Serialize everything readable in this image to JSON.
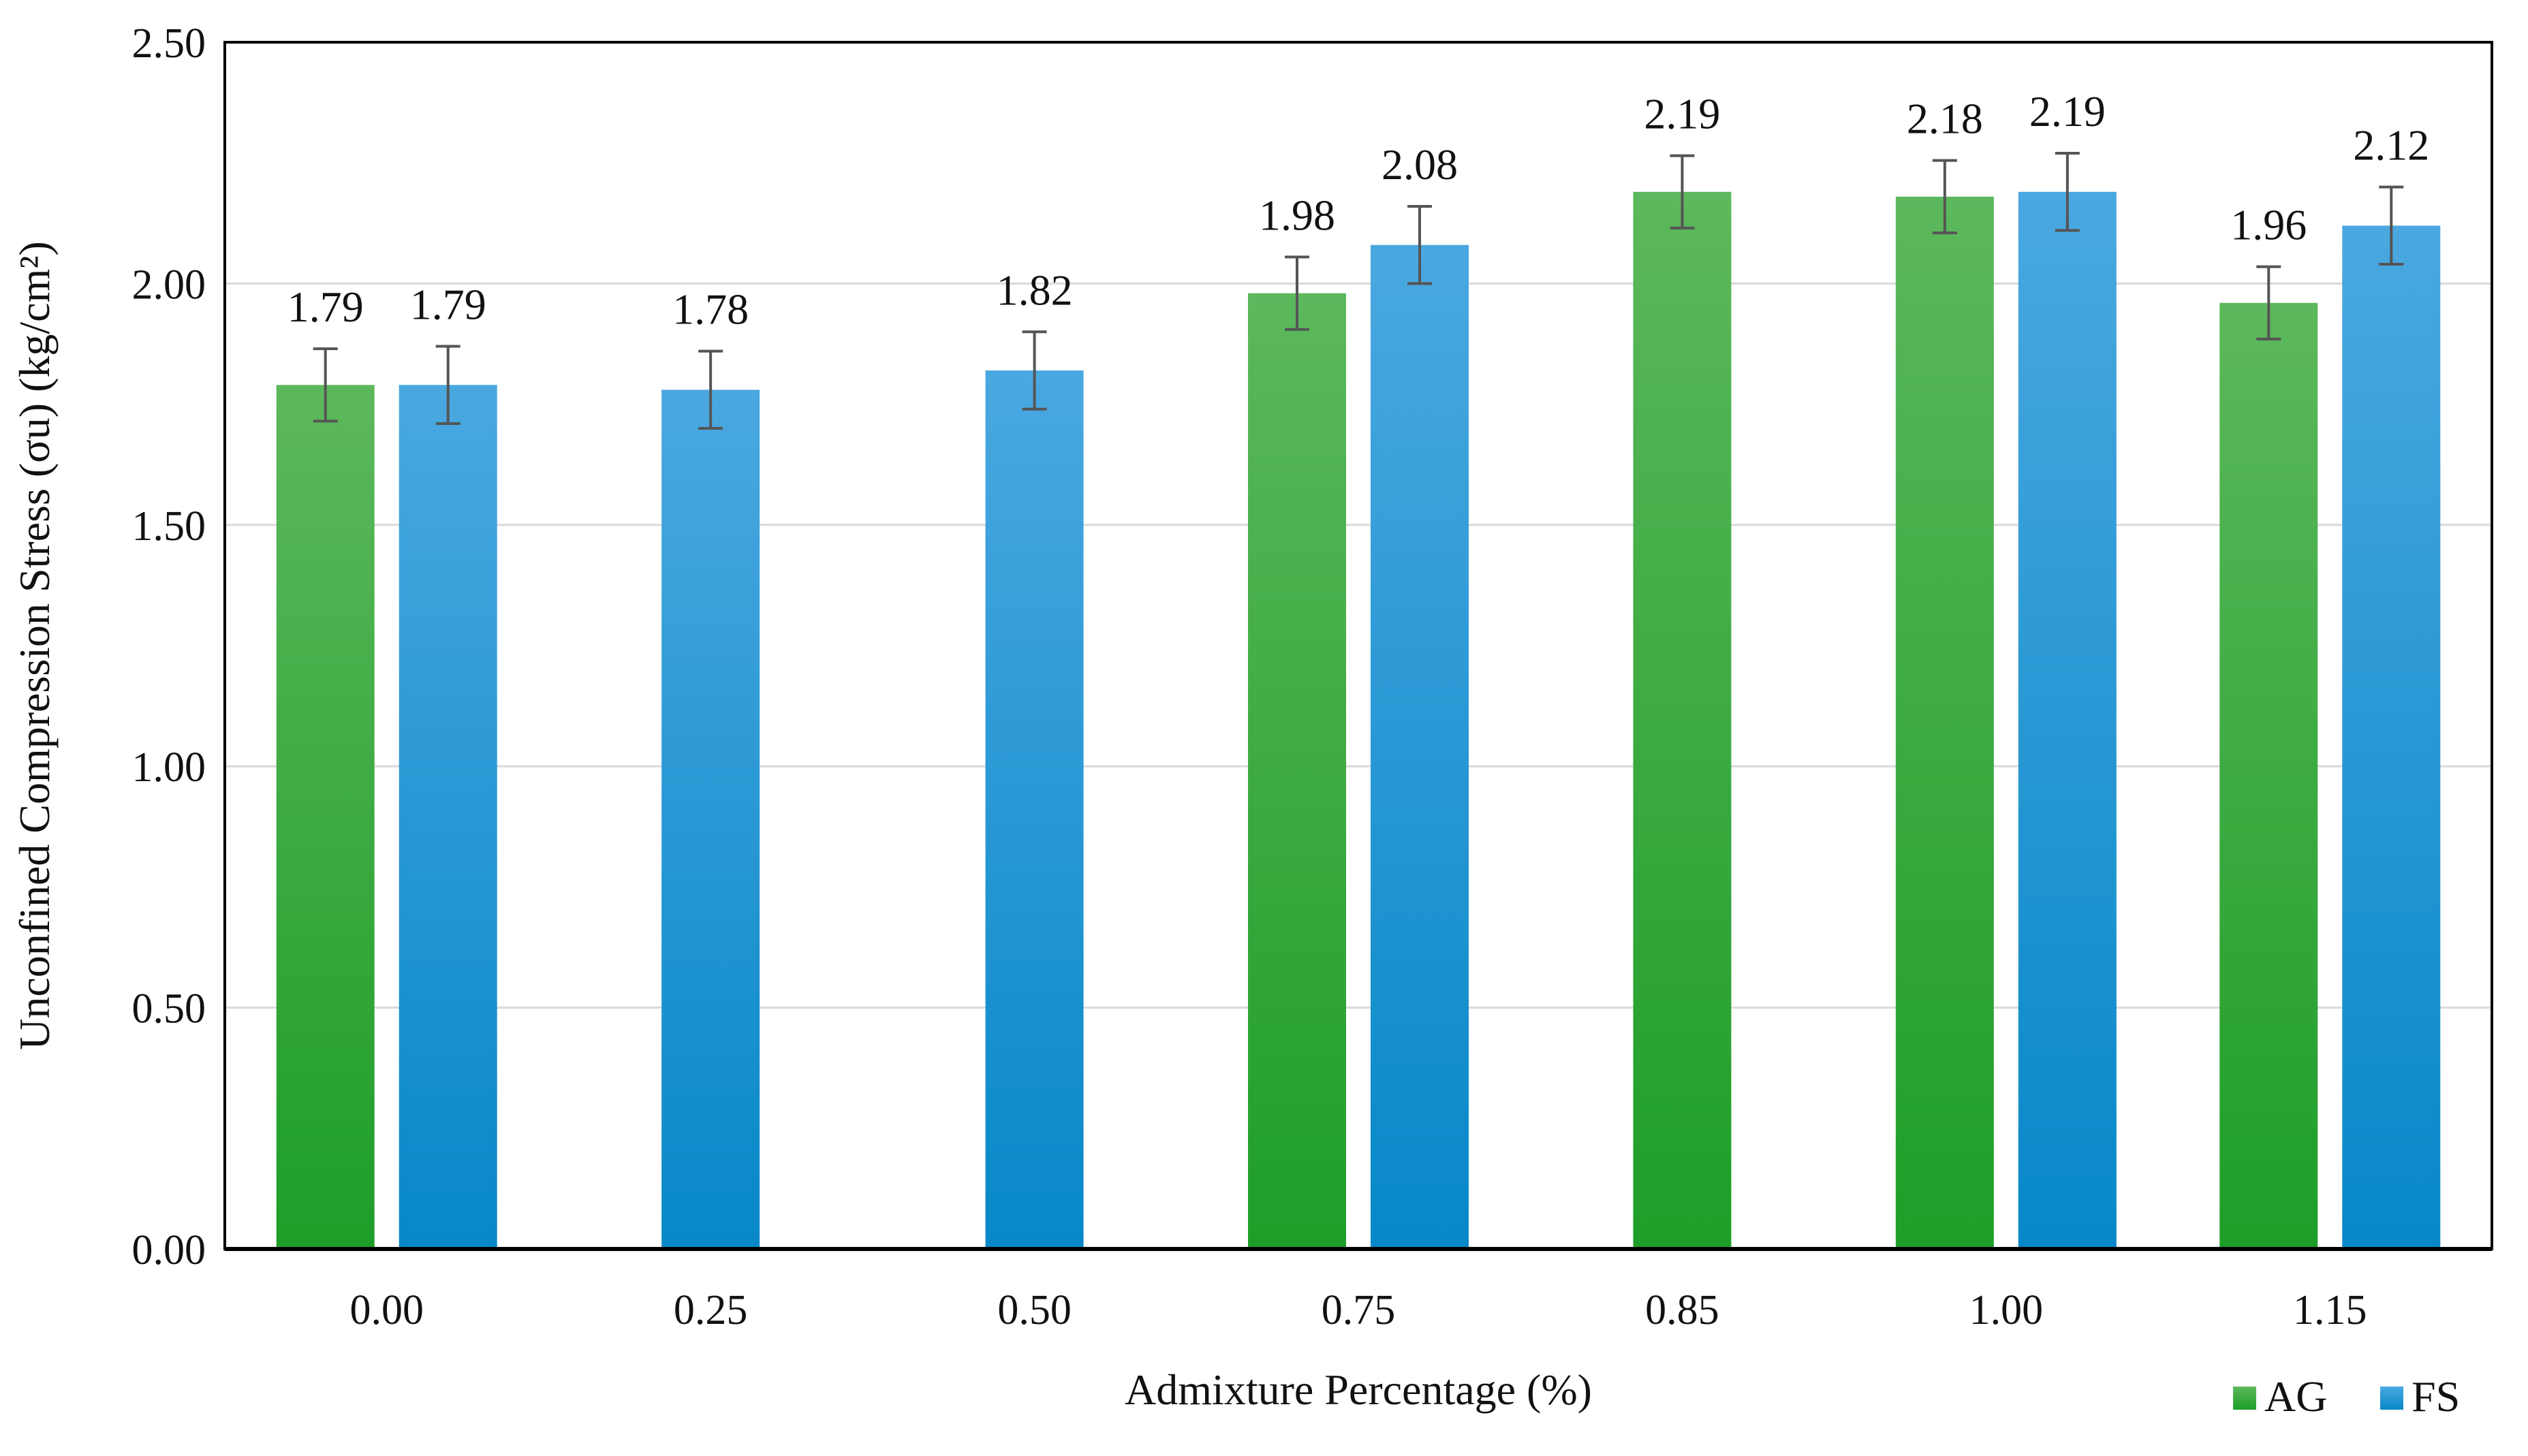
{
  "colors": {
    "AG_top": "#5cb85c",
    "AG_bottom": "#1e9e28",
    "FS_top": "#4aa8e0",
    "FS_bottom": "#0788c8",
    "error_bar": "#555555",
    "gridline": "#d9d9d9",
    "axis": "#000000"
  },
  "chart_data": {
    "type": "bar",
    "title": "",
    "xlabel": "Admixture Percentage (%)",
    "ylabel": "Unconfined Compression Stress (σu) (kg/cm²)",
    "ylim": [
      0,
      2.5
    ],
    "yticks": [
      "0.00",
      "0.50",
      "1.00",
      "1.50",
      "2.00",
      "2.50"
    ],
    "categories": [
      "0.00",
      "0.25",
      "0.50",
      "0.75",
      "0.85",
      "1.00",
      "1.15"
    ],
    "series": [
      {
        "name": "AG",
        "values": [
          1.79,
          null,
          null,
          1.98,
          2.19,
          2.18,
          1.96
        ],
        "labels": [
          "1.79",
          null,
          null,
          "1.98",
          "2.19",
          "2.18",
          "1.96"
        ],
        "error": [
          0.075,
          null,
          null,
          0.075,
          0.075,
          0.075,
          0.075
        ]
      },
      {
        "name": "FS",
        "values": [
          1.79,
          1.78,
          1.82,
          2.08,
          null,
          2.19,
          2.12
        ],
        "labels": [
          "1.79",
          "1.78",
          "1.82",
          "2.08",
          null,
          "2.19",
          "2.12"
        ],
        "error": [
          0.08,
          0.08,
          0.08,
          0.08,
          null,
          0.08,
          0.08
        ]
      }
    ],
    "grid": true,
    "legend": "bottom-right"
  }
}
